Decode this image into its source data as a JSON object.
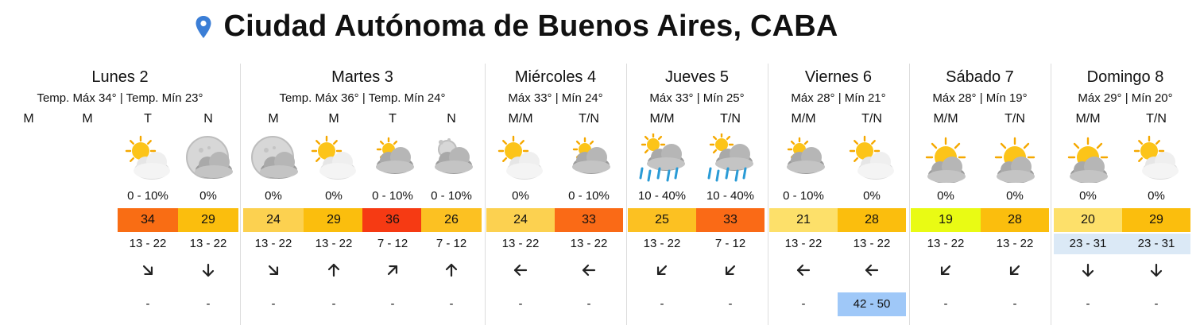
{
  "location": "Ciudad Autónoma de Buenos Aires, CABA",
  "colors": {
    "pin": "#3b7ed6",
    "gust_bg": "#9fc8f8",
    "wind_bg_alt": "#dbe9f6"
  },
  "days": [
    {
      "name": "Lunes 2",
      "temps": "Temp. Máx 34° | Temp. Mín 23°",
      "slots": [
        {
          "period": "M",
          "icon": null,
          "precip": "",
          "temp": "",
          "temp_color": "",
          "wind": "",
          "wind_bg": "",
          "arrow": null,
          "gust": "",
          "gust_bg": ""
        },
        {
          "period": "M",
          "icon": null,
          "precip": "",
          "temp": "",
          "temp_color": "",
          "wind": "",
          "wind_bg": "",
          "arrow": null,
          "gust": "",
          "gust_bg": ""
        },
        {
          "period": "T",
          "icon": "sun-cloud",
          "precip": "0 - 10%",
          "temp": "34",
          "temp_color": "#f96d14",
          "wind": "13 - 22",
          "wind_bg": "",
          "arrow": 135,
          "gust": "-",
          "gust_bg": ""
        },
        {
          "period": "N",
          "icon": "moon-cloud",
          "precip": "0%",
          "temp": "29",
          "temp_color": "#fbbe0d",
          "wind": "13 - 22",
          "wind_bg": "",
          "arrow": 180,
          "gust": "-",
          "gust_bg": ""
        }
      ]
    },
    {
      "name": "Martes 3",
      "temps": "Temp. Máx 36° | Temp. Mín 24°",
      "slots": [
        {
          "period": "M",
          "icon": "moon-cloud",
          "precip": "0%",
          "temp": "24",
          "temp_color": "#fcd150",
          "wind": "13 - 22",
          "wind_bg": "",
          "arrow": 135,
          "gust": "-",
          "gust_bg": ""
        },
        {
          "period": "M",
          "icon": "sun-cloud",
          "precip": "0%",
          "temp": "29",
          "temp_color": "#fbbe0d",
          "wind": "13 - 22",
          "wind_bg": "",
          "arrow": 0,
          "gust": "-",
          "gust_bg": ""
        },
        {
          "period": "T",
          "icon": "sun-cloud-grey",
          "precip": "0 - 10%",
          "temp": "36",
          "temp_color": "#f63a13",
          "wind": "7 - 12",
          "wind_bg": "",
          "arrow": 45,
          "gust": "-",
          "gust_bg": ""
        },
        {
          "period": "N",
          "icon": "moon-cloud-small",
          "precip": "0 - 10%",
          "temp": "26",
          "temp_color": "#fcc122",
          "wind": "7 - 12",
          "wind_bg": "",
          "arrow": 0,
          "gust": "-",
          "gust_bg": ""
        }
      ]
    },
    {
      "name": "Miércoles 4",
      "temps": "Máx 33° | Mín 24°",
      "slots": [
        {
          "period": "M/M",
          "icon": "sun-cloud",
          "precip": "0%",
          "temp": "24",
          "temp_color": "#fcd150",
          "wind": "13 - 22",
          "wind_bg": "",
          "arrow": 270,
          "gust": "-",
          "gust_bg": ""
        },
        {
          "period": "T/N",
          "icon": "sun-cloud-grey",
          "precip": "0 - 10%",
          "temp": "33",
          "temp_color": "#fa6a16",
          "wind": "13 - 22",
          "wind_bg": "",
          "arrow": 270,
          "gust": "-",
          "gust_bg": ""
        }
      ]
    },
    {
      "name": "Jueves 5",
      "temps": "Máx 33° | Mín 25°",
      "slots": [
        {
          "period": "M/M",
          "icon": "sun-rain",
          "precip": "10 - 40%",
          "temp": "25",
          "temp_color": "#fcc122",
          "wind": "13 - 22",
          "wind_bg": "",
          "arrow": 225,
          "gust": "-",
          "gust_bg": ""
        },
        {
          "period": "T/N",
          "icon": "sun-rain",
          "precip": "10 - 40%",
          "temp": "33",
          "temp_color": "#fa6a16",
          "wind": "7 - 12",
          "wind_bg": "",
          "arrow": 225,
          "gust": "-",
          "gust_bg": ""
        }
      ]
    },
    {
      "name": "Viernes 6",
      "temps": "Máx 28° | Mín 21°",
      "slots": [
        {
          "period": "M/M",
          "icon": "sun-cloud-grey",
          "precip": "0 - 10%",
          "temp": "21",
          "temp_color": "#fde06a",
          "wind": "13 - 22",
          "wind_bg": "",
          "arrow": 270,
          "gust": "-",
          "gust_bg": ""
        },
        {
          "period": "T/N",
          "icon": "sun-cloud",
          "precip": "0%",
          "temp": "28",
          "temp_color": "#fbbe0d",
          "wind": "13 - 22",
          "wind_bg": "",
          "arrow": 270,
          "gust": "42 - 50",
          "gust_bg": "#9fc8f8"
        }
      ]
    },
    {
      "name": "Sábado 7",
      "temps": "Máx 28° | Mín 19°",
      "slots": [
        {
          "period": "M/M",
          "icon": "sun-big-cloud",
          "precip": "0%",
          "temp": "19",
          "temp_color": "#e9fb14",
          "wind": "13 - 22",
          "wind_bg": "",
          "arrow": 225,
          "gust": "-",
          "gust_bg": ""
        },
        {
          "period": "T/N",
          "icon": "sun-big-cloud",
          "precip": "0%",
          "temp": "28",
          "temp_color": "#fbbe0d",
          "wind": "13 - 22",
          "wind_bg": "",
          "arrow": 225,
          "gust": "-",
          "gust_bg": ""
        }
      ]
    },
    {
      "name": "Domingo 8",
      "temps": "Máx 29° | Mín 20°",
      "slots": [
        {
          "period": "M/M",
          "icon": "sun-big-cloud",
          "precip": "0%",
          "temp": "20",
          "temp_color": "#fde06a",
          "wind": "23 - 31",
          "wind_bg": "#dbe9f6",
          "arrow": 180,
          "gust": "-",
          "gust_bg": ""
        },
        {
          "period": "T/N",
          "icon": "sun-cloud",
          "precip": "0%",
          "temp": "29",
          "temp_color": "#fbbe0d",
          "wind": "23 - 31",
          "wind_bg": "#dbe9f6",
          "arrow": 180,
          "gust": "-",
          "gust_bg": ""
        }
      ]
    }
  ]
}
